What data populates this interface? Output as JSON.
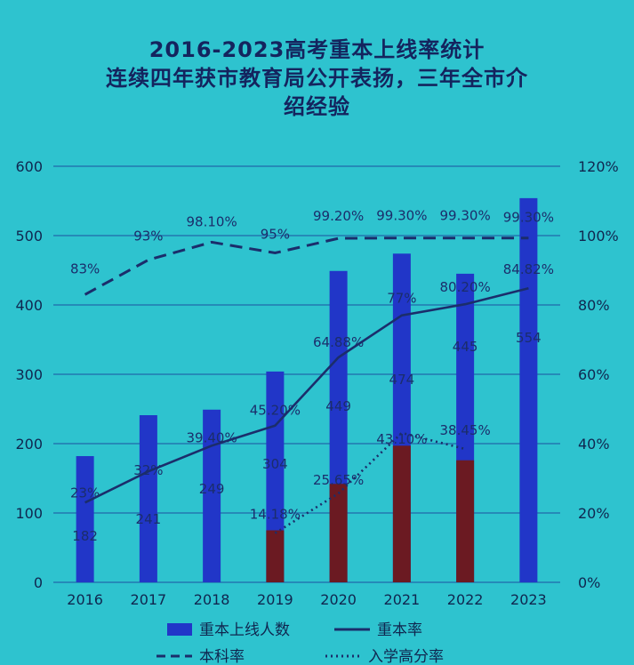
{
  "title_lines": [
    "2016-2023高考重本上线率统计",
    "连续四年获市教育局公开表扬，三年全市介",
    "绍经验"
  ],
  "colors": {
    "background": "#2ec3cf",
    "bar_blue": "#2136c8",
    "bar_dark": "#6b1a22",
    "line": "#1b2d6b"
  },
  "chart_data": {
    "type": "bar",
    "categories": [
      "2016",
      "2017",
      "2018",
      "2019",
      "2020",
      "2021",
      "2022",
      "2023"
    ],
    "ylim": [
      0,
      600
    ],
    "y2lim": [
      0,
      120
    ],
    "y_ticks": [
      "0",
      "100",
      "200",
      "300",
      "400",
      "500",
      "600"
    ],
    "y2_ticks": [
      "0%",
      "20%",
      "40%",
      "60%",
      "80%",
      "100%",
      "120%"
    ],
    "grid": true,
    "legend_position": "bottom",
    "series": [
      {
        "name": "重本上线人数",
        "kind": "bar",
        "axis": "left",
        "values": [
          182,
          241,
          249,
          304,
          449,
          474,
          445,
          554
        ],
        "labels": [
          "182",
          "241",
          "249",
          "304",
          "449",
          "474",
          "445",
          "554"
        ]
      },
      {
        "kind": "bar-overlay",
        "axis": "left",
        "values": [
          null,
          null,
          null,
          75,
          142,
          197,
          176,
          null
        ]
      },
      {
        "name": "重本率",
        "kind": "line-solid",
        "axis": "right",
        "values": [
          23,
          32,
          39.4,
          45.2,
          64.88,
          77,
          80.2,
          84.82
        ],
        "labels": [
          "23%",
          "32%",
          "39.40%",
          "45.20%",
          "64.88%",
          "77%",
          "80.20%",
          "84.82%"
        ]
      },
      {
        "name": "本科率",
        "kind": "line-dashed",
        "axis": "right",
        "values": [
          83,
          93,
          98.1,
          95,
          99.2,
          99.3,
          99.3,
          99.3
        ],
        "labels": [
          "83%",
          "93%",
          "98.10%",
          "95%",
          "99.20%",
          "99.30%",
          "99.30%",
          "99.30%"
        ]
      },
      {
        "name": "入学高分率",
        "kind": "line-dotted",
        "axis": "right",
        "values": [
          null,
          null,
          null,
          14.18,
          25.65,
          43.1,
          38.45,
          null
        ],
        "labels": [
          null,
          null,
          null,
          "14.18%",
          "25.65%",
          "43.10%",
          "38.45%",
          null
        ]
      }
    ]
  },
  "legend": [
    {
      "label": "重本上线人数",
      "style": "bar"
    },
    {
      "label": "重本率",
      "style": "solid"
    },
    {
      "label": "本科率",
      "style": "dashed"
    },
    {
      "label": "入学高分率",
      "style": "dotted"
    }
  ]
}
